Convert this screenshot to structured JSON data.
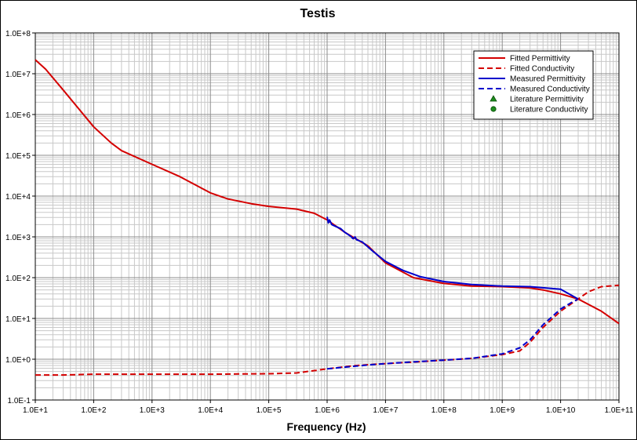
{
  "chart_data": {
    "type": "line",
    "title": "Testis",
    "xlabel": "Frequency (Hz)",
    "ylabel": "",
    "xscale": "log",
    "yscale": "log",
    "xlim": [
      10,
      100000000000
    ],
    "ylim": [
      0.1,
      100000000
    ],
    "grid": true,
    "legend_position": "top-right",
    "x_tick_labels": [
      "1.0E+1",
      "1.0E+2",
      "1.0E+3",
      "1.0E+4",
      "1.0E+5",
      "1.0E+6",
      "1.0E+7",
      "1.0E+8",
      "1.0E+9",
      "1.0E+10",
      "1.0E+11"
    ],
    "y_tick_labels": [
      "1.0E-1",
      "1.0E+0",
      "1.0E+1",
      "1.0E+2",
      "1.0E+3",
      "1.0E+4",
      "1.0E+5",
      "1.0E+6",
      "1.0E+7",
      "1.0E+8"
    ],
    "series": [
      {
        "name": "Fitted Permittivity",
        "color": "#d40000",
        "style": "solid",
        "x": [
          10,
          15,
          30,
          100,
          200,
          300,
          1000,
          3000,
          10000,
          20000,
          50000,
          100000,
          300000,
          600000,
          1000000,
          2000000,
          5000000,
          10000000,
          30000000,
          100000000,
          300000000,
          1000000000,
          3000000000,
          5000000000,
          10000000000,
          20000000000,
          50000000000,
          100000000000
        ],
        "y": [
          22000000,
          13000000,
          4000000,
          500000,
          200000,
          130000,
          60000,
          30000,
          12000,
          8500,
          6500,
          5600,
          4800,
          3800,
          2600,
          1300,
          600,
          230,
          100,
          72,
          62,
          60,
          56,
          50,
          40,
          30,
          15,
          7.5
        ]
      },
      {
        "name": "Fitted Conductivity",
        "color": "#d40000",
        "style": "dashed",
        "x": [
          10,
          30,
          100,
          1000,
          10000,
          100000,
          300000,
          1000000,
          3000000,
          10000000,
          30000000,
          100000000,
          300000000,
          1000000000,
          2000000000,
          3000000000,
          5000000000,
          10000000000,
          20000000000,
          30000000000,
          50000000000,
          100000000000
        ],
        "y": [
          0.41,
          0.41,
          0.43,
          0.43,
          0.43,
          0.44,
          0.46,
          0.58,
          0.7,
          0.78,
          0.85,
          0.95,
          1.05,
          1.3,
          1.6,
          2.6,
          6,
          15,
          30,
          45,
          60,
          65
        ]
      },
      {
        "name": "Measured Permittivity",
        "color": "#0000cc",
        "style": "solid",
        "x": [
          1000000,
          1050000,
          1100000,
          1200000,
          1400000,
          1700000,
          2000000,
          2500000,
          2800000,
          3000000,
          3200000,
          4000000,
          6000000,
          10000000,
          20000000,
          40000000,
          100000000,
          300000000,
          1000000000,
          3000000000,
          10000000000,
          20000000000
        ],
        "y": [
          3100,
          2200,
          2600,
          2000,
          1800,
          1600,
          1300,
          1050,
          900,
          1000,
          850,
          750,
          450,
          250,
          150,
          105,
          80,
          68,
          62,
          60,
          52,
          30
        ]
      },
      {
        "name": "Measured Conductivity",
        "color": "#0000cc",
        "style": "dashed",
        "x": [
          1000000,
          2000000,
          5000000,
          10000000,
          30000000,
          100000000,
          300000000,
          1000000000,
          2000000000,
          3000000000,
          5000000000,
          10000000000,
          15000000000,
          20000000000
        ],
        "y": [
          0.58,
          0.64,
          0.72,
          0.78,
          0.86,
          0.95,
          1.05,
          1.35,
          1.9,
          3,
          7,
          17,
          24,
          30
        ]
      },
      {
        "name": "Literature Permittivity",
        "color": "#1e8c1e",
        "marker": "triangle",
        "x": [],
        "y": []
      },
      {
        "name": "Literature Conductivity",
        "color": "#1e8c1e",
        "marker": "circle",
        "x": [],
        "y": []
      }
    ]
  }
}
